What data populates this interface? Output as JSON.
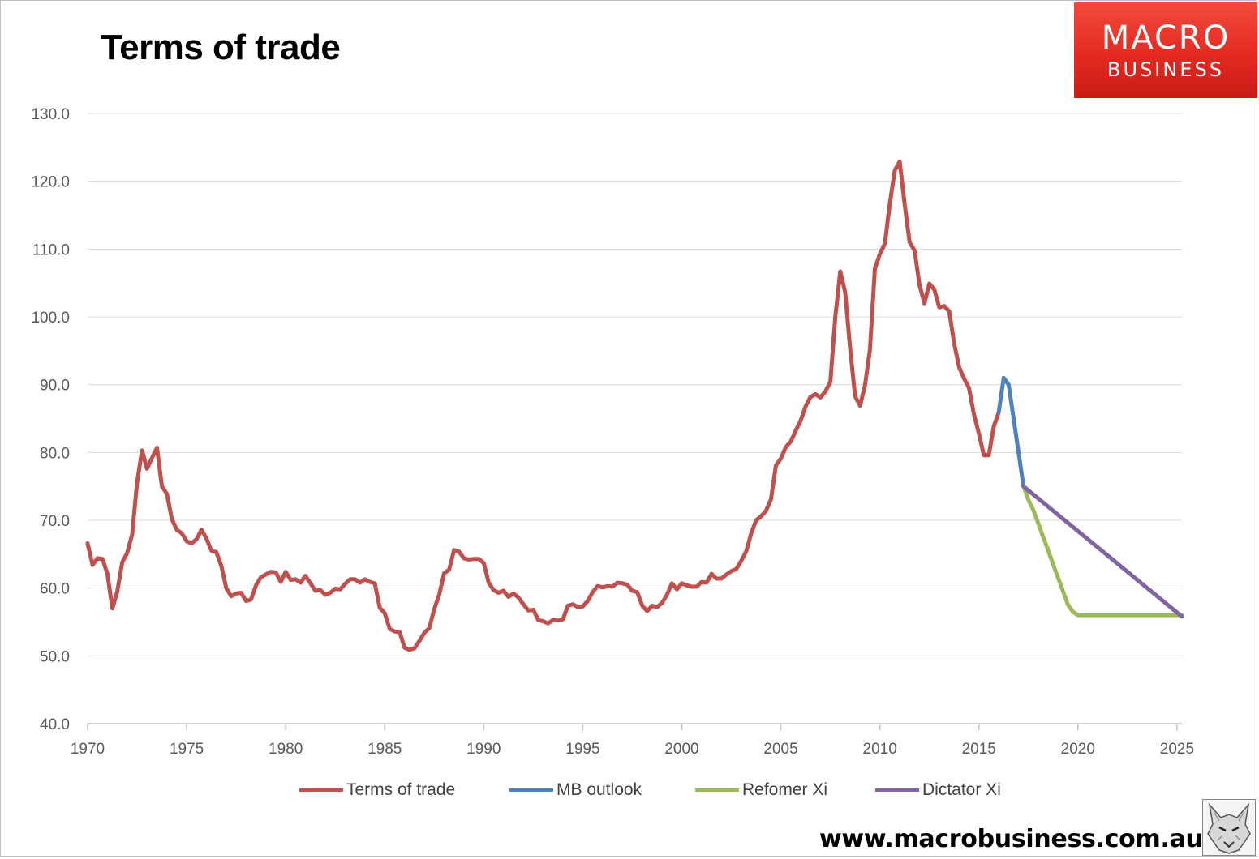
{
  "title": "Terms of trade",
  "logo": {
    "line1": "MACRO",
    "line2": "BUSINESS",
    "brand_color": "#e42a22"
  },
  "footer": {
    "url": "www.macrobusiness.com.au",
    "mascot_icon": "fox-icon"
  },
  "chart_data": {
    "type": "line",
    "title": "Terms of trade",
    "xlabel": "",
    "ylabel": "",
    "xlim": [
      1970,
      2025.25
    ],
    "ylim": [
      40,
      130
    ],
    "y_ticks": [
      "40.0",
      "50.0",
      "60.0",
      "70.0",
      "80.0",
      "90.0",
      "100.0",
      "110.0",
      "120.0",
      "130.0"
    ],
    "x_ticks": [
      "1970",
      "1975",
      "1980",
      "1985",
      "1990",
      "1995",
      "2000",
      "2005",
      "2010",
      "2015",
      "2020",
      "2025"
    ],
    "grid": "horizontal",
    "legend_position": "bottom",
    "series": [
      {
        "name": "Terms of trade",
        "color": "#c0504d",
        "x": [
          1970.0,
          1970.25,
          1970.5,
          1970.75,
          1971.0,
          1971.25,
          1971.5,
          1971.75,
          1972.0,
          1972.25,
          1972.5,
          1972.75,
          1973.0,
          1973.25,
          1973.5,
          1973.75,
          1974.0,
          1974.25,
          1974.5,
          1974.75,
          1975.0,
          1975.25,
          1975.5,
          1975.75,
          1976.0,
          1976.25,
          1976.5,
          1976.75,
          1977.0,
          1977.25,
          1977.5,
          1977.75,
          1978.0,
          1978.25,
          1978.5,
          1978.75,
          1979.0,
          1979.25,
          1979.5,
          1979.75,
          1980.0,
          1980.25,
          1980.5,
          1980.75,
          1981.0,
          1981.25,
          1981.5,
          1981.75,
          1982.0,
          1982.25,
          1982.5,
          1982.75,
          1983.0,
          1983.25,
          1983.5,
          1983.75,
          1984.0,
          1984.25,
          1984.5,
          1984.75,
          1985.0,
          1985.25,
          1985.5,
          1985.75,
          1986.0,
          1986.25,
          1986.5,
          1986.75,
          1987.0,
          1987.25,
          1987.5,
          1987.75,
          1988.0,
          1988.25,
          1988.5,
          1988.75,
          1989.0,
          1989.25,
          1989.5,
          1989.75,
          1990.0,
          1990.25,
          1990.5,
          1990.75,
          1991.0,
          1991.25,
          1991.5,
          1991.75,
          1992.0,
          1992.25,
          1992.5,
          1992.75,
          1993.0,
          1993.25,
          1993.5,
          1993.75,
          1994.0,
          1994.25,
          1994.5,
          1994.75,
          1995.0,
          1995.25,
          1995.5,
          1995.75,
          1996.0,
          1996.25,
          1996.5,
          1996.75,
          1997.0,
          1997.25,
          1997.5,
          1997.75,
          1998.0,
          1998.25,
          1998.5,
          1998.75,
          1999.0,
          1999.25,
          1999.5,
          1999.75,
          2000.0,
          2000.25,
          2000.5,
          2000.75,
          2001.0,
          2001.25,
          2001.5,
          2001.75,
          2002.0,
          2002.25,
          2002.5,
          2002.75,
          2003.0,
          2003.25,
          2003.5,
          2003.75,
          2004.0,
          2004.25,
          2004.5,
          2004.75,
          2005.0,
          2005.25,
          2005.5,
          2005.75,
          2006.0,
          2006.25,
          2006.5,
          2006.75,
          2007.0,
          2007.25,
          2007.5,
          2007.75,
          2008.0,
          2008.25,
          2008.5,
          2008.75,
          2009.0,
          2009.25,
          2009.5,
          2009.75,
          2010.0,
          2010.25,
          2010.5,
          2010.75,
          2011.0,
          2011.25,
          2011.5,
          2011.75,
          2012.0,
          2012.25,
          2012.5,
          2012.75,
          2013.0,
          2013.25,
          2013.5,
          2013.75,
          2014.0,
          2014.25,
          2014.5,
          2014.75,
          2015.0,
          2015.25,
          2015.5,
          2015.75,
          2016.0
        ],
        "values": [
          66.6,
          63.4,
          64.4,
          64.3,
          62.1,
          57.0,
          59.5,
          63.8,
          65.2,
          67.9,
          75.6,
          80.3,
          77.6,
          79.2,
          80.7,
          75.0,
          73.9,
          70.2,
          68.6,
          68.1,
          66.9,
          66.6,
          67.2,
          68.6,
          67.3,
          65.5,
          65.3,
          63.3,
          60.0,
          58.8,
          59.2,
          59.3,
          58.1,
          58.3,
          60.4,
          61.6,
          62.0,
          62.4,
          62.3,
          60.9,
          62.4,
          61.2,
          61.3,
          60.8,
          61.8,
          60.7,
          59.6,
          59.7,
          59.0,
          59.3,
          59.9,
          59.8,
          60.6,
          61.3,
          61.3,
          60.8,
          61.3,
          60.9,
          60.7,
          57.1,
          56.3,
          54.0,
          53.6,
          53.5,
          51.2,
          50.9,
          51.1,
          52.2,
          53.4,
          54.1,
          56.9,
          59.0,
          62.2,
          62.7,
          65.6,
          65.4,
          64.4,
          64.2,
          64.3,
          64.3,
          63.7,
          60.8,
          59.7,
          59.3,
          59.6,
          58.7,
          59.2,
          58.6,
          57.6,
          56.7,
          56.8,
          55.3,
          55.1,
          54.8,
          55.3,
          55.2,
          55.4,
          57.4,
          57.6,
          57.2,
          57.3,
          58.1,
          59.4,
          60.3,
          60.1,
          60.3,
          60.2,
          60.8,
          60.7,
          60.5,
          59.6,
          59.4,
          57.4,
          56.6,
          57.4,
          57.2,
          57.8,
          59.0,
          60.7,
          59.8,
          60.7,
          60.4,
          60.2,
          60.2,
          60.9,
          60.8,
          62.1,
          61.4,
          61.4,
          62.0,
          62.5,
          62.8,
          64.0,
          65.4,
          68.0,
          70.0,
          70.6,
          71.4,
          73.1,
          78.1,
          79.1,
          80.8,
          81.6,
          83.2,
          84.7,
          86.8,
          88.2,
          88.6,
          88.1,
          89.0,
          90.4,
          100.0,
          106.7,
          103.6,
          95.3,
          88.3,
          86.9,
          89.9,
          95.2,
          107.1,
          109.3,
          110.8,
          116.7,
          121.6,
          122.9,
          116.6,
          111.0,
          109.8,
          104.7,
          102.0,
          104.9,
          104.0,
          101.4,
          101.6,
          100.8,
          96.1,
          92.6,
          90.9,
          89.5,
          85.6,
          82.8,
          79.6,
          79.6,
          83.8,
          85.9
        ]
      },
      {
        "name": "MB outlook",
        "color": "#4f81bd",
        "x": [
          2016.0,
          2016.25,
          2016.5,
          2016.75,
          2017.0,
          2017.25
        ],
        "values": [
          85.9,
          91.0,
          90.0,
          85.0,
          80.0,
          75.0
        ]
      },
      {
        "name": "Refomer Xi",
        "color": "#9bbb59",
        "x": [
          2017.25,
          2017.5,
          2017.75,
          2018.0,
          2018.25,
          2018.5,
          2018.75,
          2019.0,
          2019.25,
          2019.5,
          2019.75,
          2020.0,
          2021.0,
          2022.0,
          2023.0,
          2024.0,
          2025.0,
          2025.25
        ],
        "values": [
          75.0,
          73.0,
          71.5,
          69.5,
          67.5,
          65.5,
          63.5,
          61.5,
          59.5,
          57.5,
          56.5,
          56.0,
          56.0,
          56.0,
          56.0,
          56.0,
          56.0,
          56.0
        ]
      },
      {
        "name": "Dictator Xi",
        "color": "#8064a2",
        "x": [
          2017.25,
          2025.25
        ],
        "values": [
          75.0,
          55.8
        ]
      }
    ]
  }
}
